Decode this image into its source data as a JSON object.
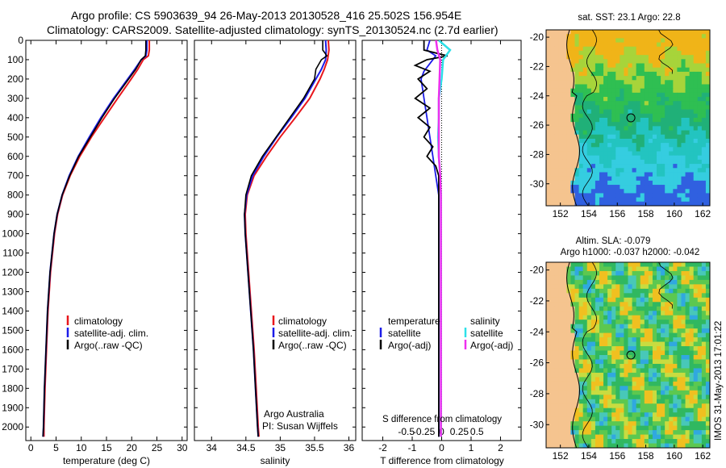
{
  "title": {
    "line1": "Argo profile: CS 5903639_94 26-May-2013 20130528_416 25.502S 156.954E",
    "line2": "Climatology: CARS2009. Satellite-adjusted climatology: synTS_20130524.nc (2.7d earlier)"
  },
  "colors": {
    "climatology": "#e8161c",
    "satellite": "#1c1ce8",
    "argo": "#000000",
    "sal_satellite": "#2ee0e8",
    "sal_argo": "#ee30ee"
  },
  "chart_data": [
    {
      "type": "line",
      "id": "temperature",
      "xlabel": "temperature (deg C)",
      "ylabel": "",
      "xlim": [
        -1,
        31
      ],
      "ylim": [
        2070,
        0
      ],
      "xticks": [
        0,
        5,
        10,
        15,
        20,
        25,
        30
      ],
      "xticklabels": [
        "0",
        "5",
        "10",
        "15",
        "20",
        "25",
        "30"
      ],
      "yticks": [
        0,
        100,
        200,
        300,
        400,
        500,
        600,
        700,
        800,
        900,
        1000,
        1100,
        1200,
        1300,
        1400,
        1500,
        1600,
        1700,
        1800,
        1900,
        2000
      ],
      "yticklabels": [
        "0",
        "100",
        "200",
        "300",
        "400",
        "500",
        "600",
        "700",
        "800",
        "900",
        "1000",
        "1100",
        "1200",
        "1300",
        "1400",
        "1500",
        "1600",
        "1700",
        "1800",
        "1900",
        "2000"
      ],
      "legend": [
        "climatology",
        "satellite-adj. clim.",
        "Argo(..raw -QC)"
      ],
      "series": [
        {
          "name": "climatology",
          "color_key": "climatology",
          "depth": [
            0,
            50,
            80,
            100,
            150,
            200,
            300,
            400,
            500,
            600,
            700,
            800,
            900,
            1000,
            1200,
            1400,
            1600,
            1800,
            2000,
            2050
          ],
          "values": [
            23.5,
            23.5,
            23.3,
            22.3,
            21.2,
            19.9,
            17.2,
            14.6,
            12.0,
            9.7,
            7.8,
            6.3,
            5.3,
            4.7,
            3.9,
            3.4,
            3.1,
            2.8,
            2.6,
            2.6
          ]
        },
        {
          "name": "satellite",
          "color_key": "satellite",
          "depth": [
            0,
            50,
            80,
            100,
            150,
            200,
            300,
            400,
            500,
            600,
            700,
            800,
            900,
            1000,
            1200,
            1400,
            1600,
            1800,
            2000,
            2050
          ],
          "values": [
            23.0,
            23.0,
            22.8,
            21.9,
            20.6,
            19.2,
            16.4,
            13.9,
            11.6,
            9.4,
            7.6,
            6.2,
            5.2,
            4.6,
            3.8,
            3.3,
            3.0,
            2.7,
            2.5,
            2.4
          ]
        },
        {
          "name": "argo",
          "color_key": "argo",
          "depth": [
            0,
            50,
            80,
            100,
            150,
            200,
            300,
            400,
            500,
            600,
            700,
            800,
            900,
            1000,
            1200,
            1400,
            1600,
            1800,
            2000,
            2050
          ],
          "values": [
            22.8,
            22.8,
            22.7,
            21.9,
            20.8,
            19.4,
            16.6,
            14.1,
            11.8,
            9.5,
            7.7,
            6.2,
            5.2,
            4.6,
            3.8,
            3.3,
            3.0,
            2.7,
            2.5,
            2.4
          ]
        }
      ]
    },
    {
      "type": "line",
      "id": "salinity",
      "xlabel": "salinity",
      "xlim": [
        33.75,
        36.1
      ],
      "ylim": [
        2070,
        0
      ],
      "xticks": [
        34,
        34.5,
        35,
        35.5,
        36
      ],
      "xticklabels": [
        "34",
        "34.5",
        "35",
        "35.5",
        "36"
      ],
      "legend": [
        "climatology",
        "satellite-adj. clim.",
        "Argo(..raw -QC)"
      ],
      "annotation": [
        "Argo Australia",
        "PI: Susan Wijffels"
      ],
      "series": [
        {
          "name": "climatology",
          "color_key": "climatology",
          "depth": [
            0,
            50,
            100,
            150,
            200,
            300,
            400,
            500,
            600,
            700,
            800,
            900,
            1000,
            1200,
            1400,
            1600,
            1800,
            2000,
            2050
          ],
          "values": [
            35.7,
            35.71,
            35.69,
            35.64,
            35.58,
            35.43,
            35.22,
            35.0,
            34.8,
            34.62,
            34.52,
            34.49,
            34.5,
            34.54,
            34.58,
            34.62,
            34.65,
            34.68,
            34.69
          ]
        },
        {
          "name": "satellite",
          "color_key": "satellite",
          "depth": [
            0,
            50,
            100,
            150,
            200,
            300,
            400,
            500,
            600,
            700,
            800,
            900,
            1000,
            1200,
            1400,
            1600,
            1800,
            2000,
            2050
          ],
          "values": [
            35.66,
            35.67,
            35.66,
            35.6,
            35.52,
            35.36,
            35.16,
            34.95,
            34.76,
            34.6,
            34.51,
            34.48,
            34.49,
            34.53,
            34.57,
            34.61,
            34.64,
            34.67,
            34.68
          ]
        },
        {
          "name": "argo",
          "color_key": "argo",
          "depth": [
            0,
            50,
            80,
            100,
            150,
            200,
            300,
            400,
            500,
            600,
            700,
            800,
            900,
            1000,
            1200,
            1400,
            1600,
            1800,
            2000,
            2050
          ],
          "values": [
            35.62,
            35.62,
            35.68,
            35.6,
            35.52,
            35.5,
            35.34,
            35.14,
            34.94,
            34.74,
            34.58,
            34.5,
            34.48,
            34.49,
            34.53,
            34.57,
            34.61,
            34.64,
            34.67,
            34.68
          ]
        }
      ]
    },
    {
      "type": "line",
      "id": "difference",
      "xlabel": "T difference from climatology",
      "xlim": [
        -2.7,
        2.7
      ],
      "ylim": [
        2070,
        0
      ],
      "xticks": [
        -2,
        -1,
        0,
        1,
        2
      ],
      "xticklabels": [
        "-2",
        "-1",
        "0",
        "1",
        "2"
      ],
      "s_xticks": [
        -0.5,
        -0.25,
        0,
        0.25,
        0.5
      ],
      "s_xticklabels": [
        "-0.5",
        "-0.25",
        "0",
        "0.25",
        "0.5"
      ],
      "s_label": "S difference from climatology",
      "legend_headers": [
        "temperature",
        "salinity"
      ],
      "legend": [
        "satellite",
        "Argo(-adj)",
        "satellite",
        "Argo(-adj)"
      ],
      "series": [
        {
          "name": "T satellite",
          "color_key": "satellite",
          "depth": [
            0,
            50,
            80,
            120,
            160,
            200,
            300,
            400,
            500,
            600,
            700,
            800,
            900,
            1000,
            1500,
            2000,
            2050
          ],
          "values": [
            -0.4,
            -0.5,
            -0.2,
            -0.4,
            -0.6,
            -0.7,
            -0.6,
            -0.5,
            -0.4,
            -0.3,
            -0.2,
            -0.1,
            -0.1,
            -0.1,
            -0.1,
            -0.1,
            -0.1
          ]
        },
        {
          "name": "T argo",
          "color_key": "argo",
          "depth": [
            0,
            50,
            80,
            100,
            130,
            160,
            200,
            250,
            300,
            350,
            400,
            450,
            500,
            550,
            600,
            650,
            700,
            800,
            1000,
            1500,
            2000,
            2050
          ],
          "values": [
            -0.6,
            -0.6,
            0.2,
            -0.5,
            -0.9,
            -0.4,
            -0.8,
            -0.5,
            -0.9,
            -0.4,
            -0.8,
            -0.4,
            -0.6,
            -0.3,
            -0.5,
            -0.2,
            -0.1,
            -0.1,
            -0.1,
            -0.1,
            -0.1,
            -0.1
          ]
        },
        {
          "name": "S satellite",
          "color_key": "sal_satellite",
          "depth": [
            0,
            50,
            100,
            200,
            300,
            400,
            500,
            600,
            700,
            800,
            900,
            1000,
            1500,
            2000,
            2050
          ],
          "values": [
            -0.04,
            0.12,
            0.02,
            0.0,
            -0.04,
            -0.04,
            -0.05,
            -0.04,
            -0.02,
            -0.01,
            -0.01,
            -0.01,
            -0.01,
            -0.01,
            -0.01
          ]
        },
        {
          "name": "S argo",
          "color_key": "sal_argo",
          "depth": [
            0,
            50,
            100,
            200,
            300,
            400,
            500,
            600,
            700,
            800,
            900,
            1000,
            1500,
            2000,
            2050
          ],
          "values": [
            -0.08,
            -0.06,
            -0.02,
            -0.03,
            -0.04,
            -0.04,
            -0.04,
            -0.04,
            -0.02,
            -0.01,
            -0.01,
            -0.01,
            -0.01,
            -0.01,
            -0.01
          ]
        }
      ]
    },
    {
      "type": "heatmap",
      "id": "sst-map",
      "title": "sat. SST: 23.1  Argo: 22.8",
      "xlim": [
        151,
        162.5
      ],
      "ylim": [
        -31.5,
        -19.5
      ],
      "xticks": [
        152,
        154,
        156,
        158,
        160,
        162
      ],
      "yticks": [
        -20,
        -22,
        -24,
        -26,
        -28,
        -30
      ],
      "marker": {
        "lon": 156.954,
        "lat": -25.502
      }
    },
    {
      "type": "heatmap",
      "id": "sla-map",
      "title_line1": "Altim. SLA: -0.079",
      "title_line2": "Argo h1000: -0.037 h2000: -0.042",
      "xlim": [
        151,
        162.5
      ],
      "ylim": [
        -31.5,
        -19.5
      ],
      "xticks": [
        152,
        154,
        156,
        158,
        160,
        162
      ],
      "yticks": [
        -20,
        -22,
        -24,
        -26,
        -28,
        -30
      ],
      "marker": {
        "lon": 156.954,
        "lat": -25.502
      }
    }
  ],
  "credit": "IMOS 31-May-2013 17:01:22"
}
